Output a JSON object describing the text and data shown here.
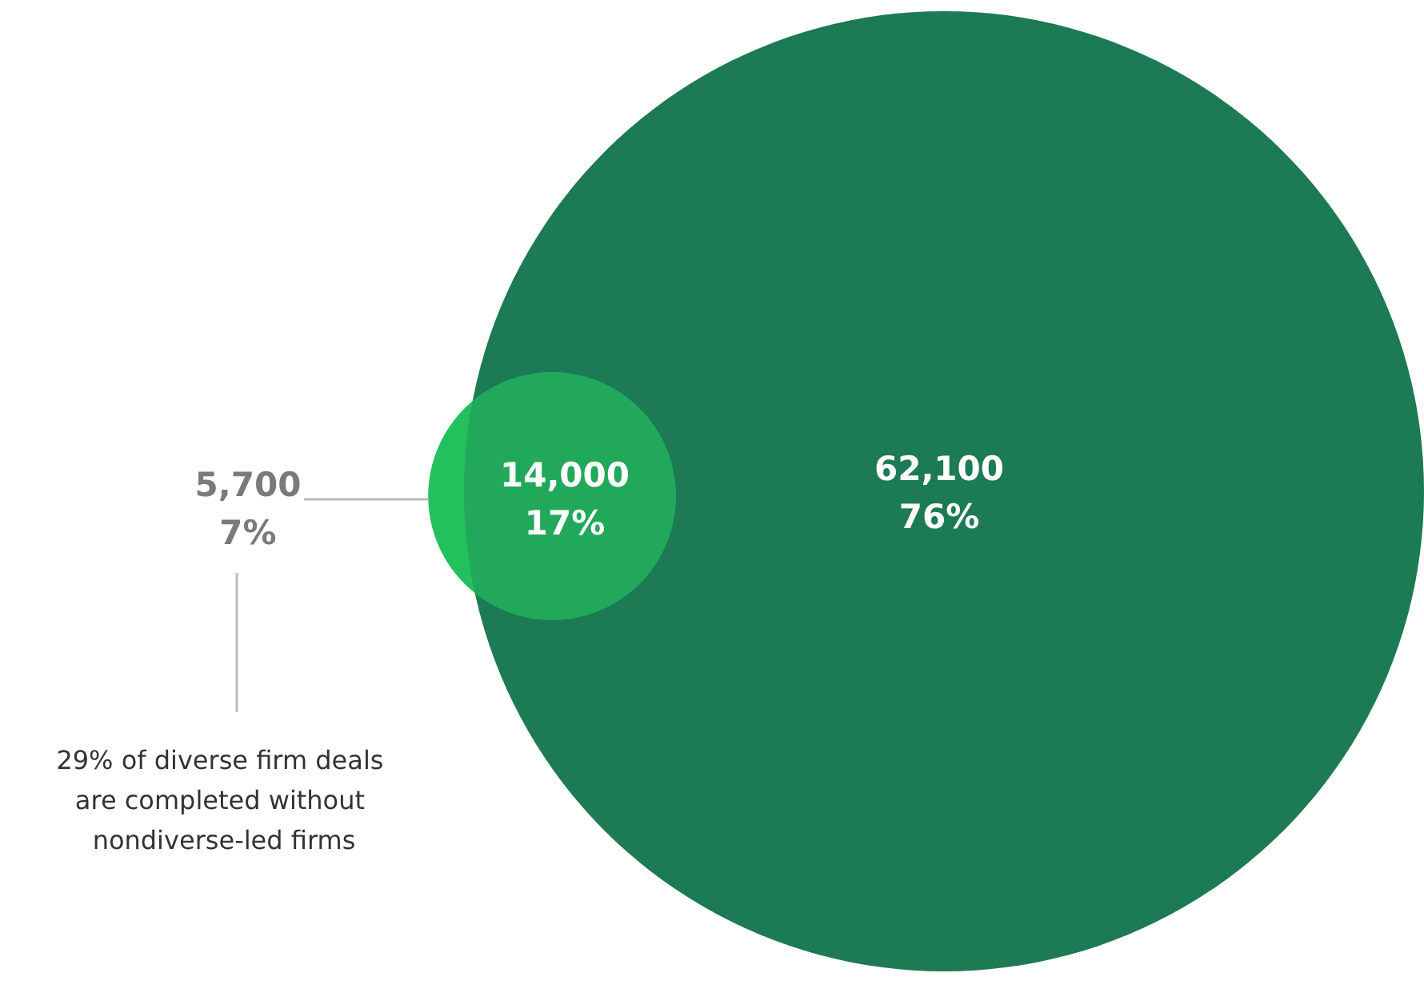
{
  "chart_data": {
    "type": "other",
    "categories": [
      null,
      null,
      null
    ],
    "values": [
      7,
      17,
      76
    ],
    "value_labels": [
      "5,700\n7%",
      "14,000\n17%",
      "62,100\n76%"
    ],
    "colors": [
      "#22c15e",
      "#21a85a",
      "#1c7a55"
    ],
    "annotations": [
      "29% of diverse firm deals are completed without nondiverse-led firms"
    ]
  }
}
